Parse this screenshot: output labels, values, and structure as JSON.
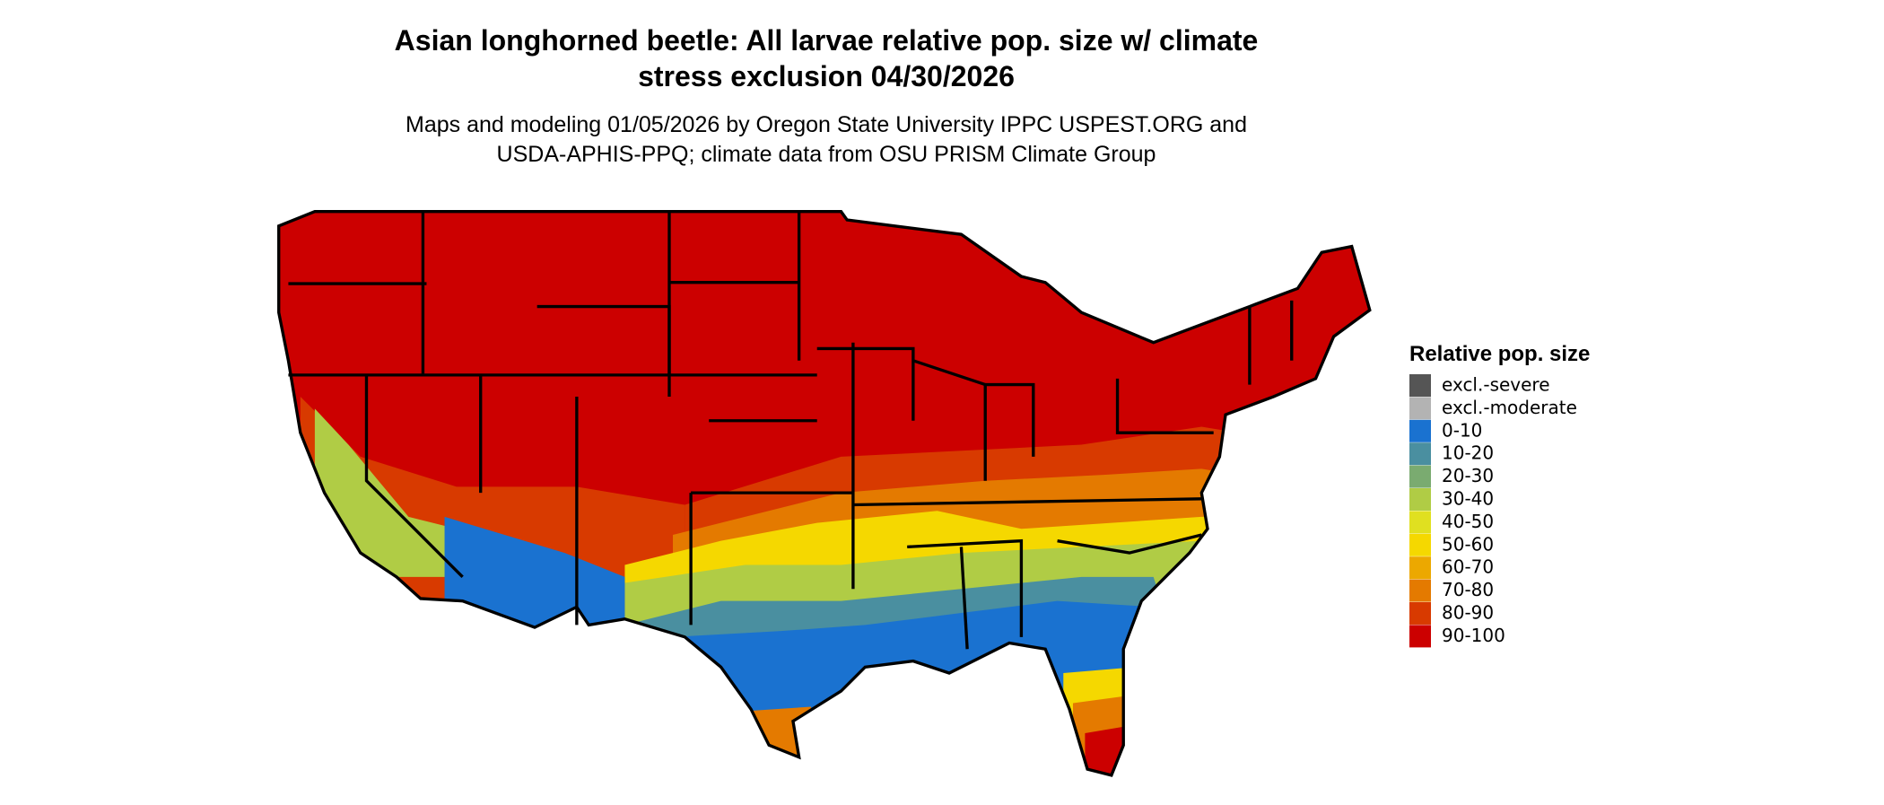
{
  "header": {
    "title": [
      "Asian longhorned beetle: All larvae relative pop. size w/ climate",
      "stress exclusion 04/30/2026"
    ],
    "subtitle": [
      "Maps and modeling 01/05/2026 by Oregon State University IPPC USPEST.ORG and",
      "USDA-APHIS-PPQ; climate data from OSU PRISM Climate Group"
    ]
  },
  "legend": {
    "title": "Relative pop. size",
    "items": [
      {
        "label": "excl.-severe",
        "color": "#555555"
      },
      {
        "label": "excl.-moderate",
        "color": "#b3b3b3"
      },
      {
        "label": "0-10",
        "color": "#1a72d0"
      },
      {
        "label": "10-20",
        "color": "#4a8fa0"
      },
      {
        "label": "20-30",
        "color": "#7aab70"
      },
      {
        "label": "30-40",
        "color": "#b0cc45"
      },
      {
        "label": "40-50",
        "color": "#e0e020"
      },
      {
        "label": "50-60",
        "color": "#f5d800"
      },
      {
        "label": "60-70",
        "color": "#eca800"
      },
      {
        "label": "70-80",
        "color": "#e47a00"
      },
      {
        "label": "80-90",
        "color": "#d83a00"
      },
      {
        "label": "90-100",
        "color": "#cc0000"
      }
    ]
  }
}
